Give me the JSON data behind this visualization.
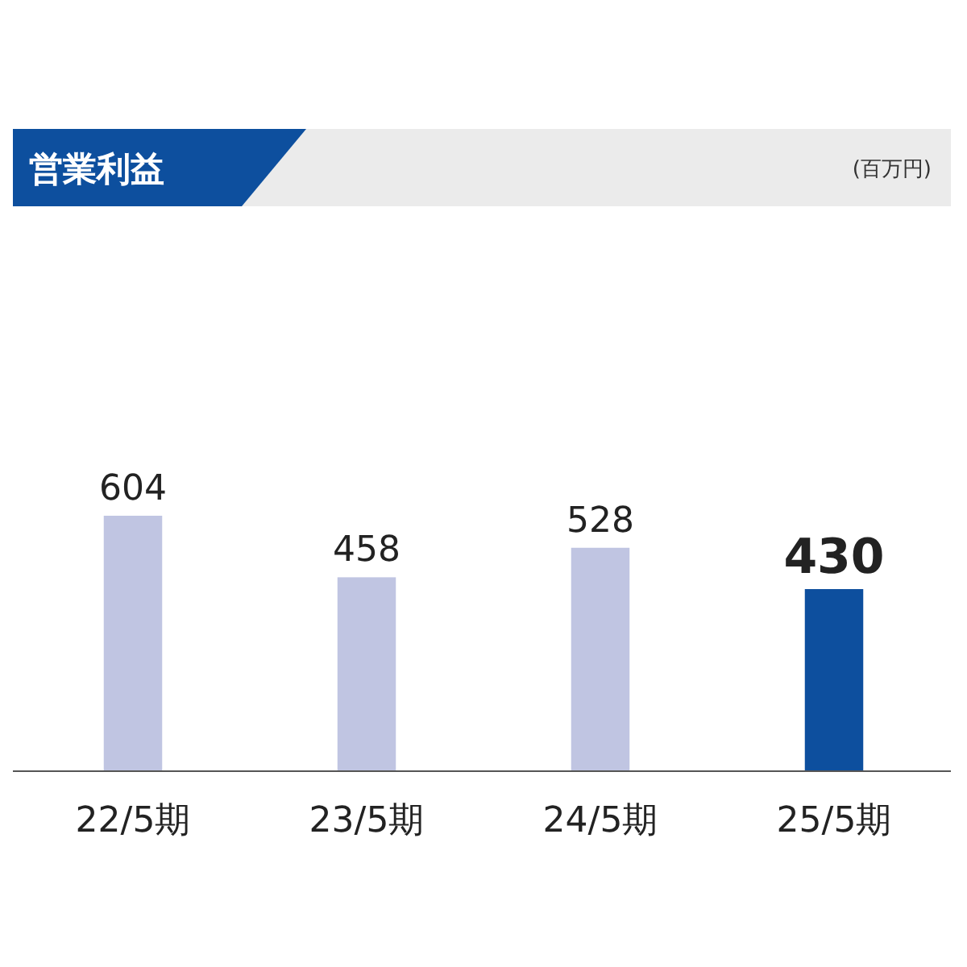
{
  "chart_data": {
    "type": "bar",
    "title": "営業利益",
    "annotations": [
      "(百万円)"
    ],
    "categories": [
      "22/5期",
      "23/5期",
      "24/5期",
      "25/5期"
    ],
    "values": [
      604,
      458,
      528,
      430
    ],
    "colors": [
      "#c0c5e2",
      "#c0c5e2",
      "#c0c5e2",
      "#0d4f9e"
    ],
    "data_labels": true
  }
}
